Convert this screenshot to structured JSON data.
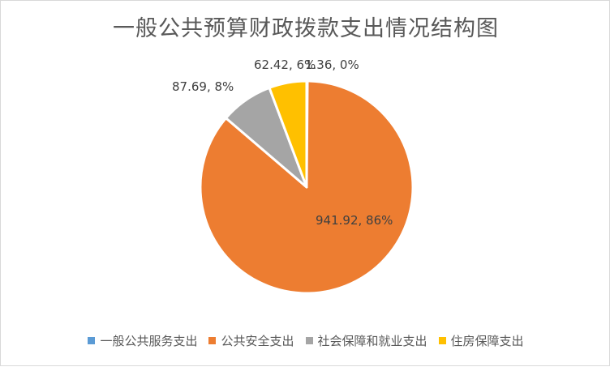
{
  "chart_data": {
    "type": "pie",
    "title": "一般公共预算财政拨款支出情况结构图",
    "categories": [
      "一般公共服务支出",
      "公共安全支出",
      "社会保障和就业支出",
      "住房保障支出"
    ],
    "values": [
      1.36,
      941.92,
      87.69,
      62.42
    ],
    "percentages": [
      "0%",
      "86%",
      "8%",
      "6%"
    ],
    "data_labels": [
      "1.36, 0%",
      "941.92, 86%",
      "87.69, 8%",
      "62.42, 6%"
    ],
    "colors": [
      "#5b9bd5",
      "#ed7d31",
      "#a5a5a5",
      "#ffc000"
    ],
    "legend_position": "bottom",
    "start_angle": "top, clockwise"
  },
  "labels": {
    "s1": "1.36, 0%",
    "s2": "941.92, 86%",
    "s3": "87.69, 8%",
    "s4": "62.42, 6%"
  },
  "legend": [
    {
      "label": "一般公共服务支出",
      "color": "#5b9bd5"
    },
    {
      "label": "公共安全支出",
      "color": "#ed7d31"
    },
    {
      "label": "社会保障和就业支出",
      "color": "#a5a5a5"
    },
    {
      "label": "住房保障支出",
      "color": "#ffc000"
    }
  ]
}
